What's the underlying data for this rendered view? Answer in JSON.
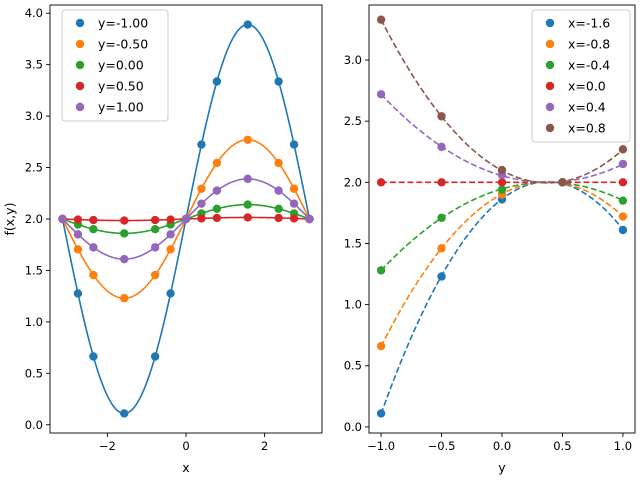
{
  "chart_data": [
    {
      "type": "line",
      "description_style": "solid curves with point markers",
      "xlabel": "x",
      "ylabel": "f(x,y)",
      "xlim": [
        -3.46,
        3.46
      ],
      "ylim": [
        -0.08,
        4.08
      ],
      "xticks": [
        -2,
        0,
        2
      ],
      "xtick_labels": [
        "−2",
        "0",
        "2"
      ],
      "yticks": [
        0.0,
        0.5,
        1.0,
        1.5,
        2.0,
        2.5,
        3.0,
        3.5,
        4.0
      ],
      "ytick_labels": [
        "0.0",
        "0.5",
        "1.0",
        "1.5",
        "2.0",
        "2.5",
        "3.0",
        "3.5",
        "4.0"
      ],
      "legend_position": "top-left",
      "line_style": "solid",
      "x": [
        -3.1416,
        -2.7489,
        -2.3562,
        -1.9635,
        -1.5708,
        -1.1781,
        -0.7854,
        -0.3927,
        0.0,
        0.3927,
        0.7854,
        1.1781,
        1.5708,
        1.9635,
        2.3562,
        2.7489,
        3.1416
      ],
      "marker_x": [
        -3.1416,
        -2.7489,
        -2.3562,
        -1.5708,
        -0.7854,
        -0.3927,
        0.0,
        0.3927,
        0.7854,
        1.5708,
        2.3562,
        2.7489,
        3.1416
      ],
      "series": [
        {
          "name": "y=-1.00",
          "color": "#1f77b4",
          "y_param": -1.0,
          "amplitude": 1.89
        },
        {
          "name": "y=-0.50",
          "color": "#ff7f0e",
          "y_param": -0.5,
          "amplitude": 0.77
        },
        {
          "name": "y=0.00",
          "color": "#2ca02c",
          "y_param": 0.0,
          "amplitude": 0.14
        },
        {
          "name": "y=0.50",
          "color": "#d62728",
          "y_param": 0.5,
          "amplitude": 0.015
        },
        {
          "name": "y=1.00",
          "color": "#9467bd",
          "y_param": 1.0,
          "amplitude": 0.39
        }
      ]
    },
    {
      "type": "line",
      "description_style": "dashed curves with point markers",
      "xlabel": "y",
      "ylabel": "",
      "xlim": [
        -1.1,
        1.1
      ],
      "ylim": [
        -0.05,
        3.45
      ],
      "xticks": [
        -1.0,
        -0.5,
        0.0,
        0.5,
        1.0
      ],
      "xtick_labels": [
        "−1.0",
        "−0.5",
        "0.0",
        "0.5",
        "1.0"
      ],
      "yticks": [
        0.0,
        0.5,
        1.0,
        1.5,
        2.0,
        2.5,
        3.0
      ],
      "ytick_labels": [
        "0.0",
        "0.5",
        "1.0",
        "1.5",
        "2.0",
        "2.5",
        "3.0"
      ],
      "legend_position": "top-right",
      "line_style": "dashed",
      "x": [
        -1.0,
        -0.5,
        0.0,
        0.5,
        1.0
      ],
      "series": [
        {
          "name": "x=-1.6",
          "color": "#1f77b4",
          "values": [
            0.11,
            1.23,
            1.86,
            2.0,
            1.61
          ]
        },
        {
          "name": "x=-0.8",
          "color": "#ff7f0e",
          "values": [
            0.66,
            1.46,
            1.9,
            2.0,
            1.72
          ]
        },
        {
          "name": "x=-0.4",
          "color": "#2ca02c",
          "values": [
            1.28,
            1.71,
            1.94,
            2.0,
            1.85
          ]
        },
        {
          "name": "x=0.0",
          "color": "#d62728",
          "values": [
            2.0,
            2.0,
            2.0,
            2.0,
            2.0
          ]
        },
        {
          "name": "x=0.4",
          "color": "#9467bd",
          "values": [
            2.72,
            2.29,
            2.06,
            2.0,
            2.15
          ]
        },
        {
          "name": "x=0.8",
          "color": "#8c564b",
          "values": [
            3.33,
            2.54,
            2.1,
            2.0,
            2.27
          ]
        }
      ]
    }
  ]
}
